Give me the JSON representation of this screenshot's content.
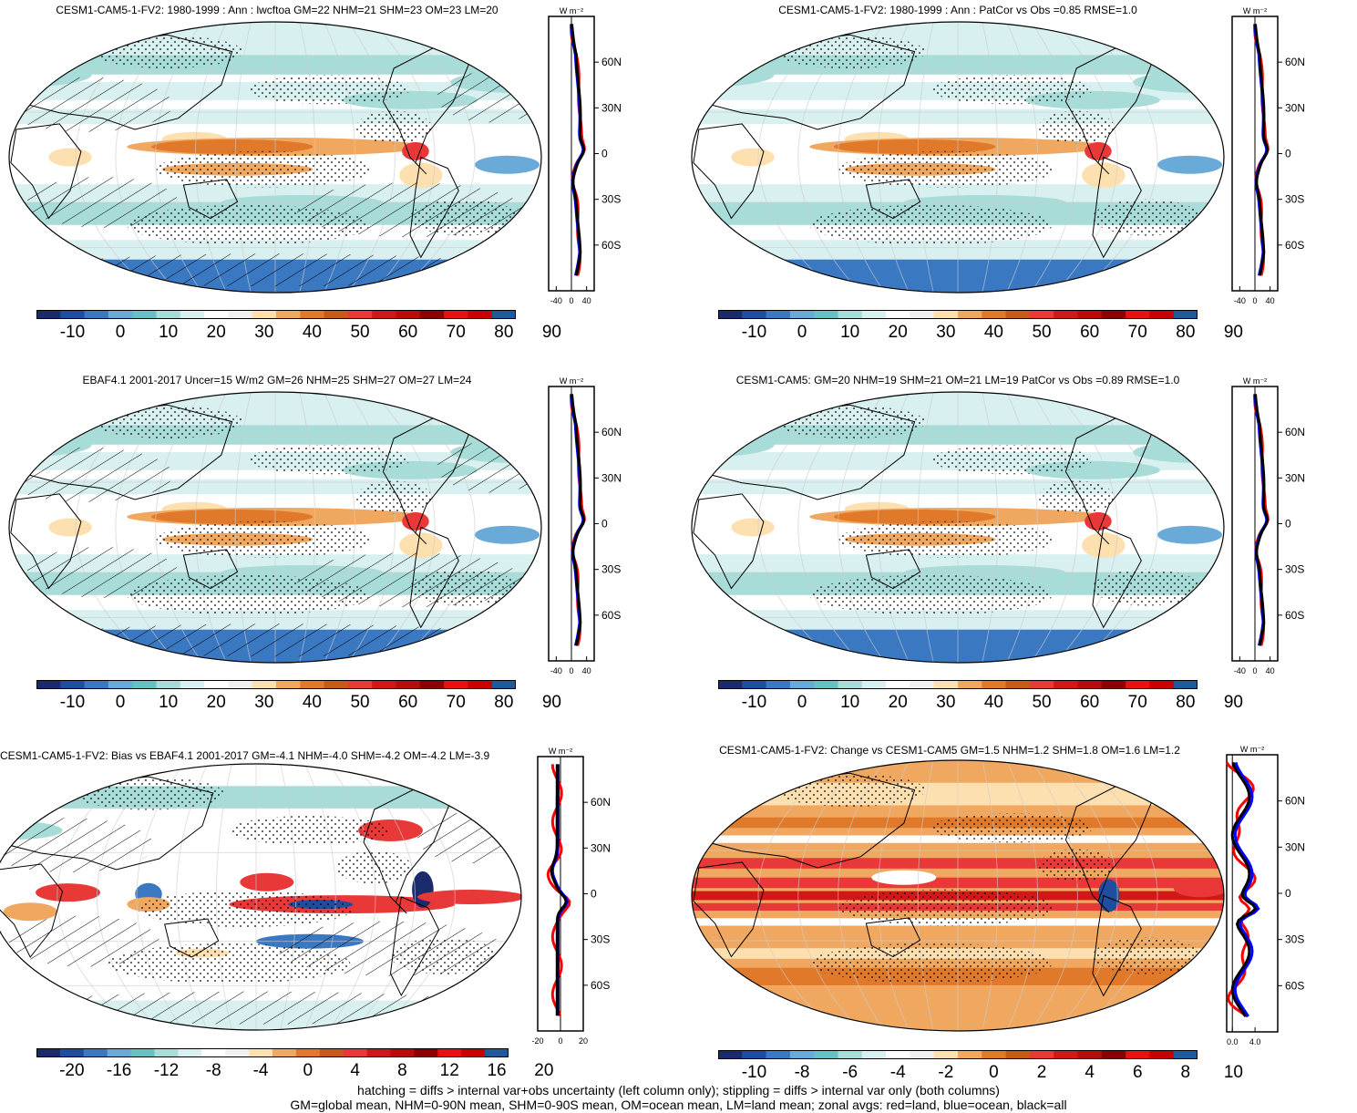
{
  "panels": [
    {
      "title": "CESM1-CAM5-1-FV2: 1980-1999 : Ann : lwcftoa GM=22 NHM=21 SHM=23 OM=23 LM=20",
      "kind": "abs",
      "hatch": true,
      "colorbar_labels": [
        "-10",
        "0",
        "10",
        "20",
        "30",
        "40",
        "50",
        "60",
        "70",
        "80",
        "90"
      ],
      "zonal_xticks": [
        "-40",
        "0",
        "40"
      ],
      "zonal_xrange": [
        -60,
        60
      ],
      "zonal_units": "W m⁻²"
    },
    {
      "title": "CESM1-CAM5-1-FV2: 1980-1999 : Ann : PatCor vs Obs =0.85 RMSE=1.0",
      "kind": "abs",
      "hatch": false,
      "colorbar_labels": [
        "-10",
        "0",
        "10",
        "20",
        "30",
        "40",
        "50",
        "60",
        "70",
        "80",
        "90"
      ],
      "zonal_xticks": [
        "-40",
        "0",
        "40"
      ],
      "zonal_xrange": [
        -60,
        60
      ],
      "zonal_units": "W m⁻²"
    },
    {
      "title": "EBAF4.1 2001-2017 Uncer=15 W/m2 GM=26 NHM=25 SHM=27 OM=27 LM=24",
      "kind": "abs",
      "hatch": true,
      "colorbar_labels": [
        "-10",
        "0",
        "10",
        "20",
        "30",
        "40",
        "50",
        "60",
        "70",
        "80",
        "90"
      ],
      "zonal_xticks": [
        "-40",
        "0",
        "40"
      ],
      "zonal_xrange": [
        -60,
        60
      ],
      "zonal_units": "W m⁻²"
    },
    {
      "title": "CESM1-CAM5: GM=20 NHM=19 SHM=21 OM=21 LM=19 PatCor vs Obs =0.89 RMSE=1.0",
      "kind": "abs",
      "hatch": false,
      "colorbar_labels": [
        "-10",
        "0",
        "10",
        "20",
        "30",
        "40",
        "50",
        "60",
        "70",
        "80",
        "90"
      ],
      "zonal_xticks": [
        "-40",
        "0",
        "40"
      ],
      "zonal_xrange": [
        -60,
        60
      ],
      "zonal_units": "W m⁻²"
    },
    {
      "title": "CESM1-CAM5-1-FV2: Bias vs EBAF4.1 2001-2017 GM=-4.1 NHM=-4.0 SHM=-4.2 OM=-4.2 LM=-3.9",
      "kind": "bias",
      "hatch": true,
      "colorbar_labels": [
        "-20",
        "-16",
        "-12",
        "-8",
        "-4",
        "0",
        "4",
        "8",
        "12",
        "16",
        "20"
      ],
      "zonal_xticks": [
        "-20",
        "0",
        "20"
      ],
      "zonal_xrange": [
        -20,
        20
      ],
      "zonal_units": "W m⁻²"
    },
    {
      "title": "CESM1-CAM5-1-FV2: Change vs CESM1-CAM5 GM=1.5 NHM=1.2 SHM=1.8 OM=1.6 LM=1.2",
      "kind": "change",
      "hatch": false,
      "colorbar_labels": [
        "-10",
        "-8",
        "-6",
        "-4",
        "-2",
        "0",
        "2",
        "4",
        "6",
        "8",
        "10"
      ],
      "zonal_xticks": [
        "0.0",
        "4.0"
      ],
      "zonal_xrange": [
        -1,
        8
      ],
      "zonal_units": "W m⁻²"
    }
  ],
  "lat_labels": [
    "60N",
    "30N",
    "0",
    "30S",
    "60S"
  ],
  "series_colors": {
    "land": "#ff0000",
    "ocean": "#0000ff",
    "all": "#000000"
  },
  "palette": [
    "#1b2a6b",
    "#1f4ea0",
    "#3a78c2",
    "#6aaad8",
    "#66c2c2",
    "#a8dcd8",
    "#d8f0f0",
    "#ffffff",
    "#f0f0f0",
    "#fde0b0",
    "#f0a860",
    "#e07a2a",
    "#c85a18",
    "#e83838",
    "#d01818",
    "#b80c0c",
    "#8c0000",
    "#e81010",
    "#c80000",
    "#1f5a9a"
  ],
  "footer": {
    "line1": "hatching = diffs > internal var+obs uncertainty (left column only); stippling = diffs > internal var only (both columns)",
    "line2": "GM=global mean, NHM=0-90N mean, SHM=0-90S mean, OM=ocean mean, LM=land mean; zonal avgs: red=land, blue=ocean, black=all"
  }
}
